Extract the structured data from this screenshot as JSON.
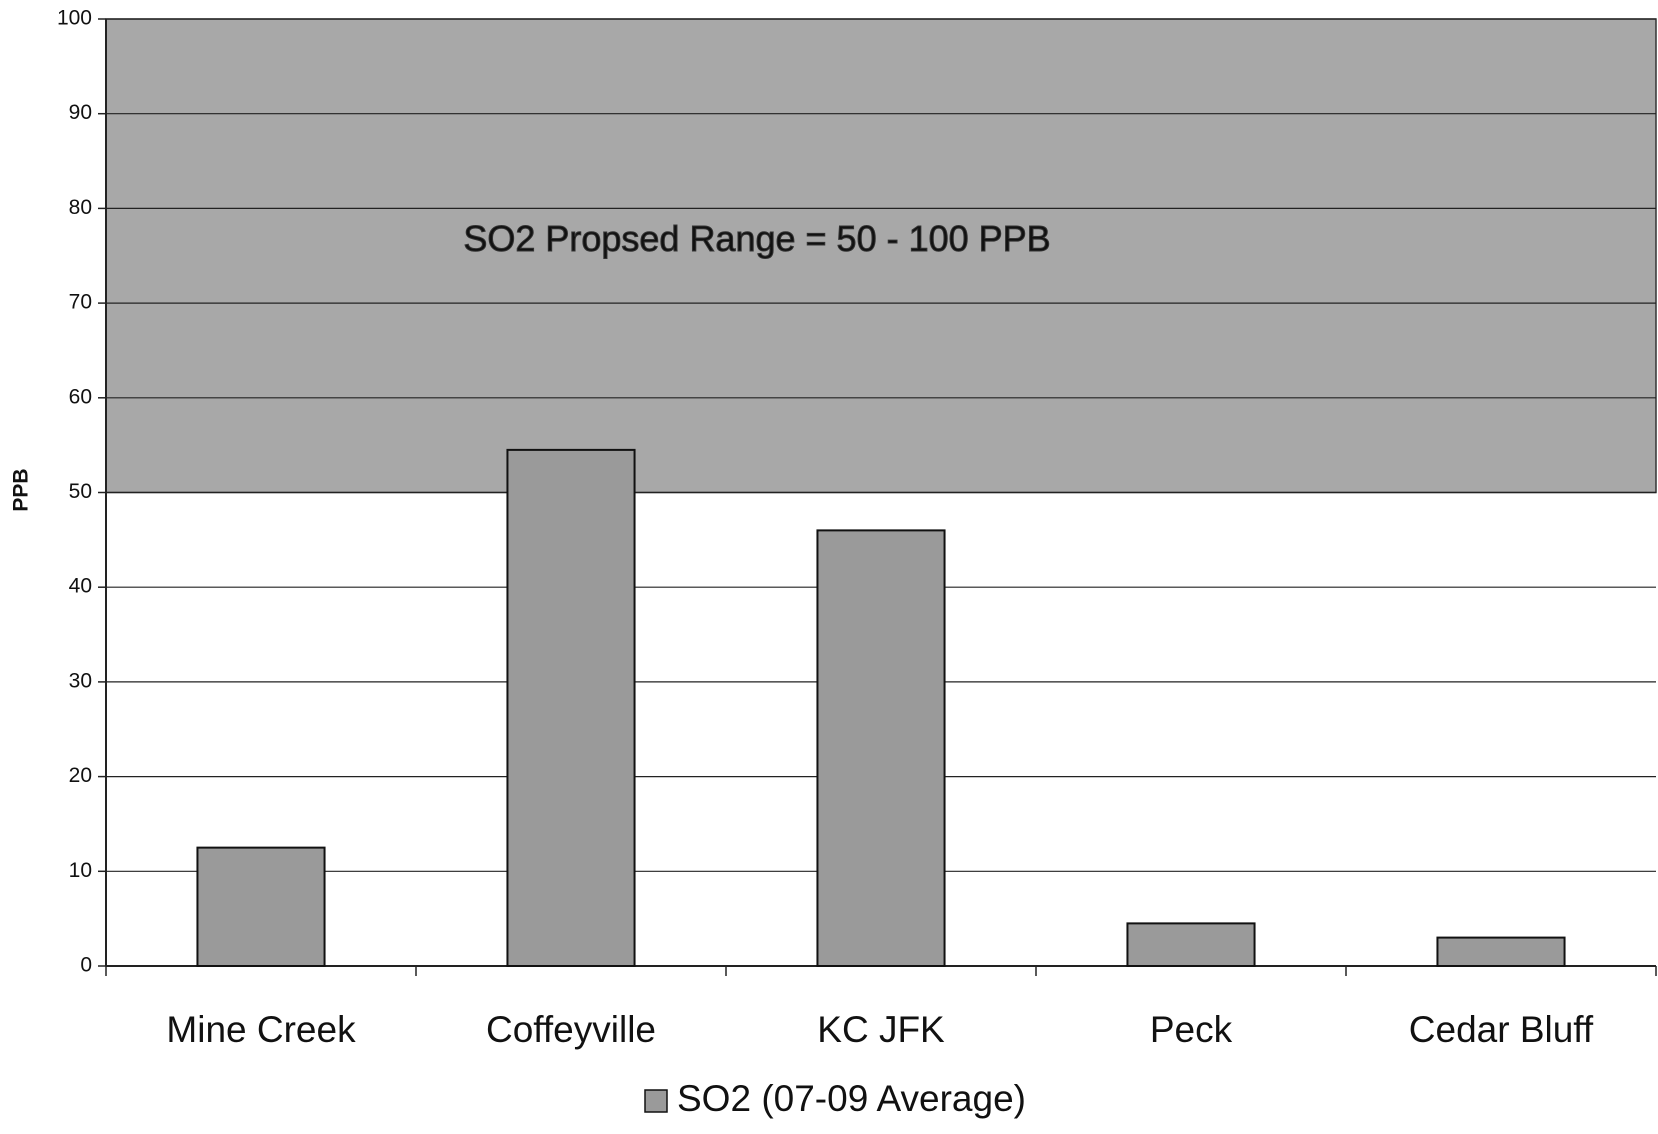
{
  "chart_data": {
    "type": "bar",
    "y_label": "PPB",
    "annotation": "SO2 Propsed Range = 50 - 100 PPB",
    "band": [
      50,
      100
    ],
    "categories": [
      "Mine Creek",
      "Coffeyville",
      "KC JFK",
      "Peck",
      "Cedar Bluff"
    ],
    "series": [
      {
        "name": "SO2 (07-09 Average)",
        "color": "#9a9a9a",
        "values": [
          12.5,
          54.5,
          46,
          4.5,
          3
        ]
      }
    ],
    "ylim": [
      0,
      100
    ],
    "yticks": [
      0,
      10,
      20,
      30,
      40,
      50,
      60,
      70,
      80,
      90,
      100
    ],
    "grid": true,
    "legend": "bottom"
  }
}
